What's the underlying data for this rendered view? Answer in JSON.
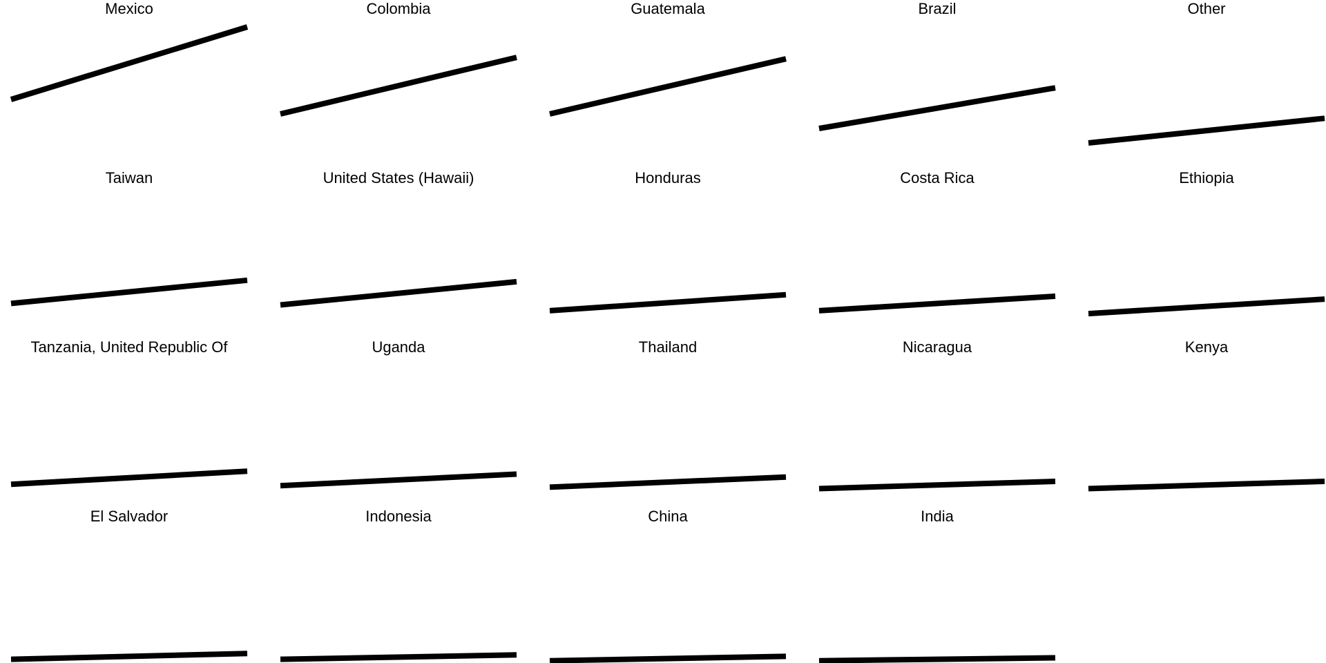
{
  "chart_data": {
    "type": "line",
    "layout": "small-multiples",
    "x": [
      0,
      1
    ],
    "ylim": [
      0,
      1
    ],
    "line_color": "#000000",
    "background_color": "#ffffff",
    "series": [
      {
        "name": "Mexico",
        "values": [
          0.4,
          0.9
        ]
      },
      {
        "name": "Colombia",
        "values": [
          0.3,
          0.69
        ]
      },
      {
        "name": "Guatemala",
        "values": [
          0.3,
          0.68
        ]
      },
      {
        "name": "Brazil",
        "values": [
          0.2,
          0.48
        ]
      },
      {
        "name": "Other",
        "values": [
          0.1,
          0.27
        ]
      },
      {
        "name": "Taiwan",
        "values": [
          0.16,
          0.32
        ]
      },
      {
        "name": "United States (Hawaii)",
        "values": [
          0.15,
          0.31
        ]
      },
      {
        "name": "Honduras",
        "values": [
          0.11,
          0.22
        ]
      },
      {
        "name": "Costa Rica",
        "values": [
          0.11,
          0.21
        ]
      },
      {
        "name": "Ethiopia",
        "values": [
          0.09,
          0.19
        ]
      },
      {
        "name": "Tanzania, United Republic Of",
        "values": [
          0.08,
          0.17
        ]
      },
      {
        "name": "Uganda",
        "values": [
          0.07,
          0.15
        ]
      },
      {
        "name": "Thailand",
        "values": [
          0.06,
          0.13
        ]
      },
      {
        "name": "Nicaragua",
        "values": [
          0.05,
          0.1
        ]
      },
      {
        "name": "Kenya",
        "values": [
          0.05,
          0.1
        ]
      },
      {
        "name": "El Salvador",
        "values": [
          0.04,
          0.08
        ]
      },
      {
        "name": "Indonesia",
        "values": [
          0.04,
          0.07
        ]
      },
      {
        "name": "China",
        "values": [
          0.03,
          0.06
        ]
      },
      {
        "name": "India",
        "values": [
          0.03,
          0.05
        ]
      }
    ]
  }
}
